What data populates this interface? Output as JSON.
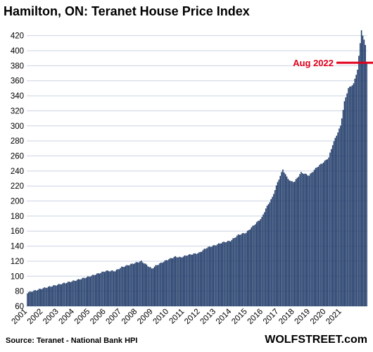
{
  "chart_data": {
    "type": "bar",
    "title": "Hamilton, ON: Teranet House Price Index",
    "xlabel": "",
    "ylabel": "",
    "ylim": [
      60,
      430
    ],
    "yticks": [
      60,
      80,
      100,
      120,
      140,
      160,
      180,
      200,
      220,
      240,
      260,
      280,
      300,
      320,
      340,
      360,
      380,
      400,
      420
    ],
    "xtick_labels": [
      "2001",
      "2002",
      "2003",
      "2004",
      "2005",
      "2006",
      "2007",
      "2008",
      "2009",
      "2010",
      "2011",
      "2012",
      "2013",
      "2014",
      "2015",
      "2016",
      "2017",
      "2018",
      "2019",
      "2020",
      "2021"
    ],
    "x_start": "2001-01",
    "x_end": "2022-08",
    "bar_color": "#1f3a68",
    "grid": "horizontal",
    "annotation": {
      "text": "Aug 2022",
      "value": 384,
      "color": "#e0001b"
    },
    "anchors": [
      [
        "2001-01",
        78
      ],
      [
        "2002-01",
        84
      ],
      [
        "2003-01",
        89
      ],
      [
        "2004-01",
        94
      ],
      [
        "2005-01",
        100
      ],
      [
        "2006-01",
        107
      ],
      [
        "2006-08",
        107
      ],
      [
        "2007-01",
        112
      ],
      [
        "2007-12",
        118
      ],
      [
        "2008-04",
        120
      ],
      [
        "2008-12",
        110
      ],
      [
        "2009-03",
        114
      ],
      [
        "2009-12",
        122
      ],
      [
        "2010-06",
        126
      ],
      [
        "2010-10",
        125
      ],
      [
        "2011-03",
        128
      ],
      [
        "2011-12",
        131
      ],
      [
        "2012-06",
        138
      ],
      [
        "2012-12",
        141
      ],
      [
        "2013-06",
        145
      ],
      [
        "2013-12",
        147
      ],
      [
        "2014-06",
        155
      ],
      [
        "2014-12",
        158
      ],
      [
        "2015-06",
        168
      ],
      [
        "2015-12",
        178
      ],
      [
        "2016-03",
        190
      ],
      [
        "2016-08",
        205
      ],
      [
        "2016-12",
        225
      ],
      [
        "2017-04",
        242
      ],
      [
        "2017-07",
        232
      ],
      [
        "2017-10",
        226
      ],
      [
        "2018-01",
        226
      ],
      [
        "2018-06",
        238
      ],
      [
        "2018-12",
        234
      ],
      [
        "2019-06",
        245
      ],
      [
        "2019-12",
        253
      ],
      [
        "2020-03",
        258
      ],
      [
        "2020-06",
        275
      ],
      [
        "2020-12",
        300
      ],
      [
        "2021-03",
        332
      ],
      [
        "2021-06",
        350
      ],
      [
        "2021-10",
        356
      ],
      [
        "2022-01",
        375
      ],
      [
        "2022-03",
        410
      ],
      [
        "2022-04",
        428
      ],
      [
        "2022-05",
        420
      ],
      [
        "2022-07",
        408
      ],
      [
        "2022-08",
        384
      ]
    ]
  },
  "source_text": "Source: Teranet - National Bank HPI",
  "brand_text": "WOLFSTREET.com"
}
